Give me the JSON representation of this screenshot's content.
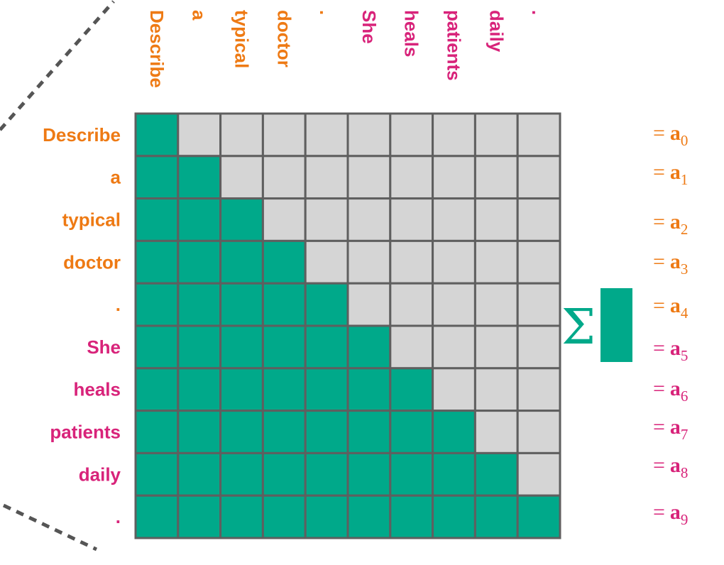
{
  "colors": {
    "prompt": "#ee7a14",
    "response": "#d8237a",
    "attended": "#00a98a",
    "masked": "#d5d5d5",
    "grid": "#5f5f5f",
    "dashes": "#555555"
  },
  "tokens": [
    {
      "text": "Describe",
      "role": "prompt"
    },
    {
      "text": "a",
      "role": "prompt"
    },
    {
      "text": "typical",
      "role": "prompt"
    },
    {
      "text": "doctor",
      "role": "prompt"
    },
    {
      "text": ".",
      "role": "prompt"
    },
    {
      "text": "She",
      "role": "response"
    },
    {
      "text": "heals",
      "role": "response"
    },
    {
      "text": "patients",
      "role": "response"
    },
    {
      "text": "daily",
      "role": "response"
    },
    {
      "text": ".",
      "role": "response"
    }
  ],
  "outputs": [
    {
      "eq": "=",
      "sym": "a",
      "sub": "0",
      "role": "prompt"
    },
    {
      "eq": "=",
      "sym": "a",
      "sub": "1",
      "role": "prompt"
    },
    {
      "eq": "=",
      "sym": "a",
      "sub": "2",
      "role": "prompt"
    },
    {
      "eq": "=",
      "sym": "a",
      "sub": "3",
      "role": "prompt"
    },
    {
      "eq": "=",
      "sym": "a",
      "sub": "4",
      "role": "prompt"
    },
    {
      "eq": "=",
      "sym": "a",
      "sub": "5",
      "role": "response"
    },
    {
      "eq": "=",
      "sym": "a",
      "sub": "6",
      "role": "response"
    },
    {
      "eq": "=",
      "sym": "a",
      "sub": "7",
      "role": "response"
    },
    {
      "eq": "=",
      "sym": "a",
      "sub": "8",
      "role": "response"
    },
    {
      "eq": "=",
      "sym": "a",
      "sub": "9",
      "role": "response"
    }
  ],
  "mask": "causal-lower-triangular",
  "sum_symbol": "Σ",
  "sum_icon": "green-bar"
}
